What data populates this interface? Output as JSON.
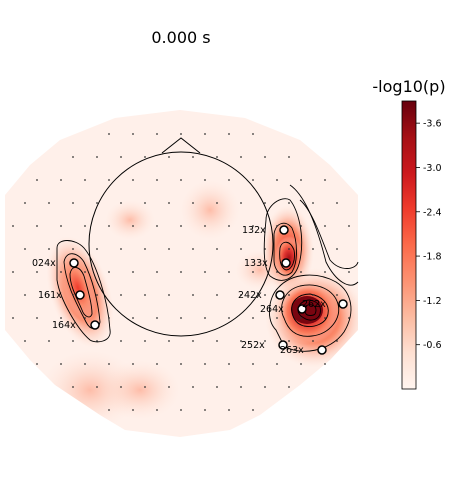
{
  "chart_data": {
    "type": "heatmap",
    "title": "0.000 s",
    "colorbar": {
      "label": "-log10(p)",
      "ticks": [
        -3.6,
        -3.0,
        -2.4,
        -1.8,
        -1.2,
        -0.6
      ],
      "tick_labels": [
        "-3.6",
        "-3.0",
        "-2.4",
        "-1.8",
        "-1.2",
        "-0.6"
      ],
      "range": [
        -3.9,
        0.0
      ],
      "colormap": "Reds"
    },
    "sensors_marked": [
      {
        "label": "132x",
        "value": -2.4
      },
      {
        "label": "133x",
        "value": -3.0
      },
      {
        "label": "242x",
        "value": -1.5
      },
      {
        "label": "264x",
        "value": -3.7
      },
      {
        "label": "262x",
        "value": -3.1
      },
      {
        "label": "252x",
        "value": -1.0
      },
      {
        "label": "263x",
        "value": -0.9
      },
      {
        "label": "024x",
        "value": -1.6
      },
      {
        "label": "161x",
        "value": -2.3
      },
      {
        "label": "164x",
        "value": -1.5
      }
    ],
    "grid": false
  },
  "colors": {
    "colormap_light": "#fff5f0",
    "colormap_mid": "#fb6a4a",
    "colormap_dark": "#67000d"
  }
}
